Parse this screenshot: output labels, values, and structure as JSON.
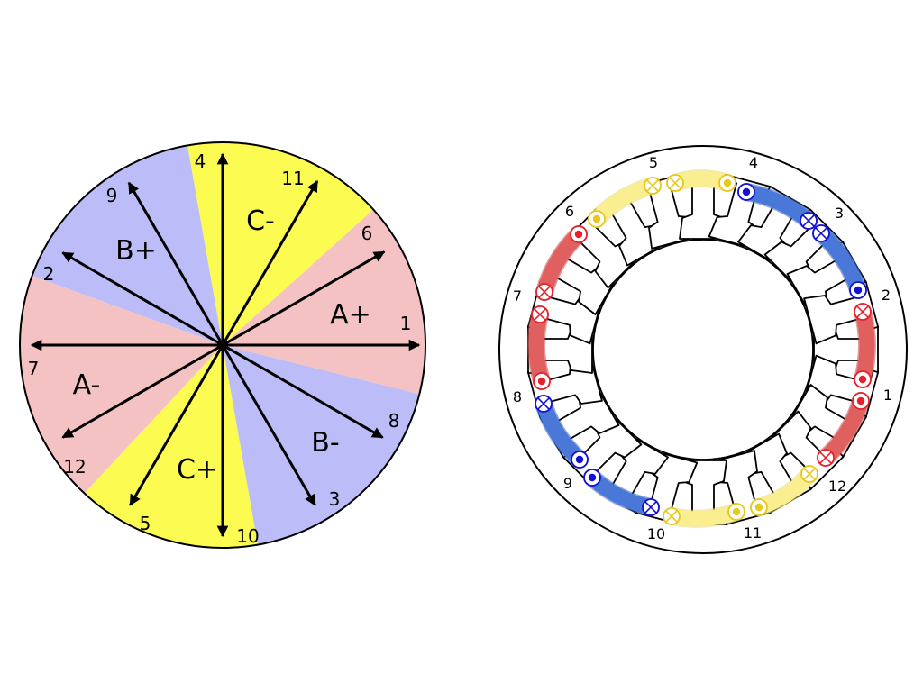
{
  "colors": {
    "phase_a": "#f4c2c2",
    "phase_b": "#bcbcf9",
    "phase_c": "#fbfb52",
    "coil_a": "#e06060",
    "coil_b": "#4a78d8",
    "coil_c": "#f9ee90",
    "dot_a": "#e8202a",
    "dot_b": "#1010d8",
    "dot_c": "#e8c818"
  },
  "phasor_diagram": {
    "sectors": [
      {
        "name": "A+",
        "label": "A+",
        "phase": "a"
      },
      {
        "name": "C-",
        "label": "C-",
        "phase": "c"
      },
      {
        "name": "B+",
        "label": "B+",
        "phase": "b"
      },
      {
        "name": "A-",
        "label": "A-",
        "phase": "a"
      },
      {
        "name": "C+",
        "label": "C+",
        "phase": "c"
      },
      {
        "name": "B-",
        "label": "B-",
        "phase": "b"
      }
    ],
    "vectors": [
      {
        "label": "1"
      },
      {
        "label": "2"
      },
      {
        "label": "3"
      },
      {
        "label": "4"
      },
      {
        "label": "5"
      },
      {
        "label": "6"
      },
      {
        "label": "7"
      },
      {
        "label": "8"
      },
      {
        "label": "9"
      },
      {
        "label": "10"
      },
      {
        "label": "11"
      },
      {
        "label": "12"
      }
    ]
  },
  "stator_diagram": {
    "slot_count": 24,
    "slot_labels": [
      "1",
      "2",
      "3",
      "4",
      "5",
      "6",
      "7",
      "8",
      "9",
      "10",
      "11",
      "12"
    ]
  }
}
